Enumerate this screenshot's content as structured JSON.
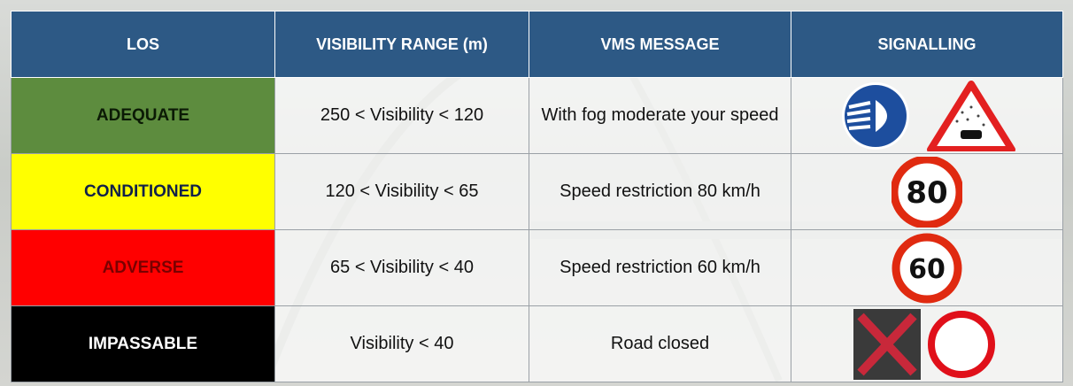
{
  "table": {
    "headers": [
      "LOS",
      "VISIBILITY RANGE (m)",
      "VMS MESSAGE",
      "SIGNALLING"
    ],
    "rows": [
      {
        "los": "ADEQUATE",
        "range": "250 < Visibility < 120",
        "message": "With fog moderate your speed"
      },
      {
        "los": "CONDITIONED",
        "range": "120 < Visibility < 65",
        "message": "Speed restriction 80 km/h",
        "sign": "80"
      },
      {
        "los": "ADVERSE",
        "range": "65 < Visibility < 40",
        "message": "Speed restriction 60 km/h",
        "sign": "60"
      },
      {
        "los": "IMPASSABLE",
        "range": "Visibility < 40",
        "message": "Road closed"
      }
    ]
  }
}
